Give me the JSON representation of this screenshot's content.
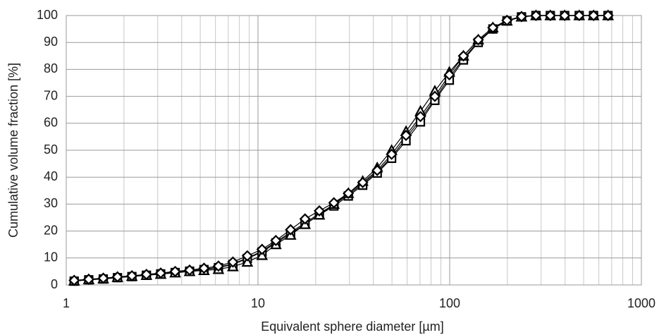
{
  "chart_data": {
    "type": "line",
    "x_label": "Equivalent sphere diameter [µm]",
    "y_label": "Cumulative volume fraction [%]",
    "x": [
      1.1,
      1.31,
      1.56,
      1.85,
      2.2,
      2.62,
      3.11,
      3.7,
      4.4,
      5.23,
      6.22,
      7.4,
      8.8,
      10.5,
      12.4,
      14.8,
      17.6,
      20.9,
      24.9,
      29.6,
      35.2,
      41.9,
      49.8,
      59.2,
      70.4,
      83.7,
      99.6,
      118,
      141,
      168,
      199,
      237,
      282,
      335,
      398,
      474,
      563,
      670
    ],
    "series": [
      {
        "color": "#000000",
        "marker": "circle",
        "values": [
          1.5,
          2,
          2.3,
          2.8,
          3.2,
          3.7,
          4.2,
          4.7,
          5.2,
          5.8,
          6.6,
          7.8,
          10,
          12.5,
          16,
          19.5,
          23,
          26.5,
          29.8,
          33.5,
          37.5,
          42,
          47.5,
          54.5,
          61.5,
          69,
          77,
          84,
          90.5,
          95,
          98,
          99.5,
          100,
          100,
          100,
          100,
          100,
          100
        ]
      },
      {
        "color": "#000000",
        "marker": "square",
        "values": [
          1.4,
          1.9,
          2.2,
          2.7,
          3.1,
          3.6,
          4.1,
          4.6,
          5.1,
          5.7,
          6.4,
          7.6,
          9.8,
          12.2,
          15.6,
          19,
          22.5,
          26,
          29.3,
          33,
          37,
          41.5,
          47,
          53.5,
          60.5,
          68.5,
          76,
          83.5,
          90,
          95,
          98,
          99.5,
          100,
          100,
          100,
          100,
          100,
          100
        ]
      },
      {
        "color": "#000000",
        "marker": "triangle",
        "values": [
          1.5,
          2,
          2.3,
          2.8,
          3.2,
          3.6,
          4,
          4.5,
          5,
          5.4,
          5.8,
          6.8,
          8.5,
          11,
          15,
          18.5,
          22.5,
          26,
          30,
          34,
          38.5,
          43.5,
          50,
          57,
          64.5,
          72,
          79,
          85,
          91,
          95.5,
          98,
          99.5,
          100,
          100,
          100,
          100,
          100,
          100
        ]
      },
      {
        "color": "#000000",
        "marker": "diamond",
        "values": [
          1.7,
          2.1,
          2.5,
          3,
          3.4,
          3.9,
          4.4,
          5,
          5.5,
          6.2,
          7,
          8.5,
          10.8,
          13.2,
          16.5,
          20.5,
          24.5,
          27.5,
          30.5,
          34,
          38,
          42.5,
          48.5,
          55.5,
          62.5,
          70,
          78,
          85,
          91,
          95.5,
          98.2,
          99.6,
          100,
          100,
          100,
          100,
          100,
          100
        ]
      }
    ],
    "xscale": "log",
    "xlim": [
      1,
      1000
    ],
    "xticks": [
      1,
      10,
      100,
      1000
    ],
    "ylim": [
      0,
      100
    ],
    "yticks": [
      0,
      10,
      20,
      30,
      40,
      50,
      60,
      70,
      80,
      90,
      100
    ],
    "grid": true
  }
}
